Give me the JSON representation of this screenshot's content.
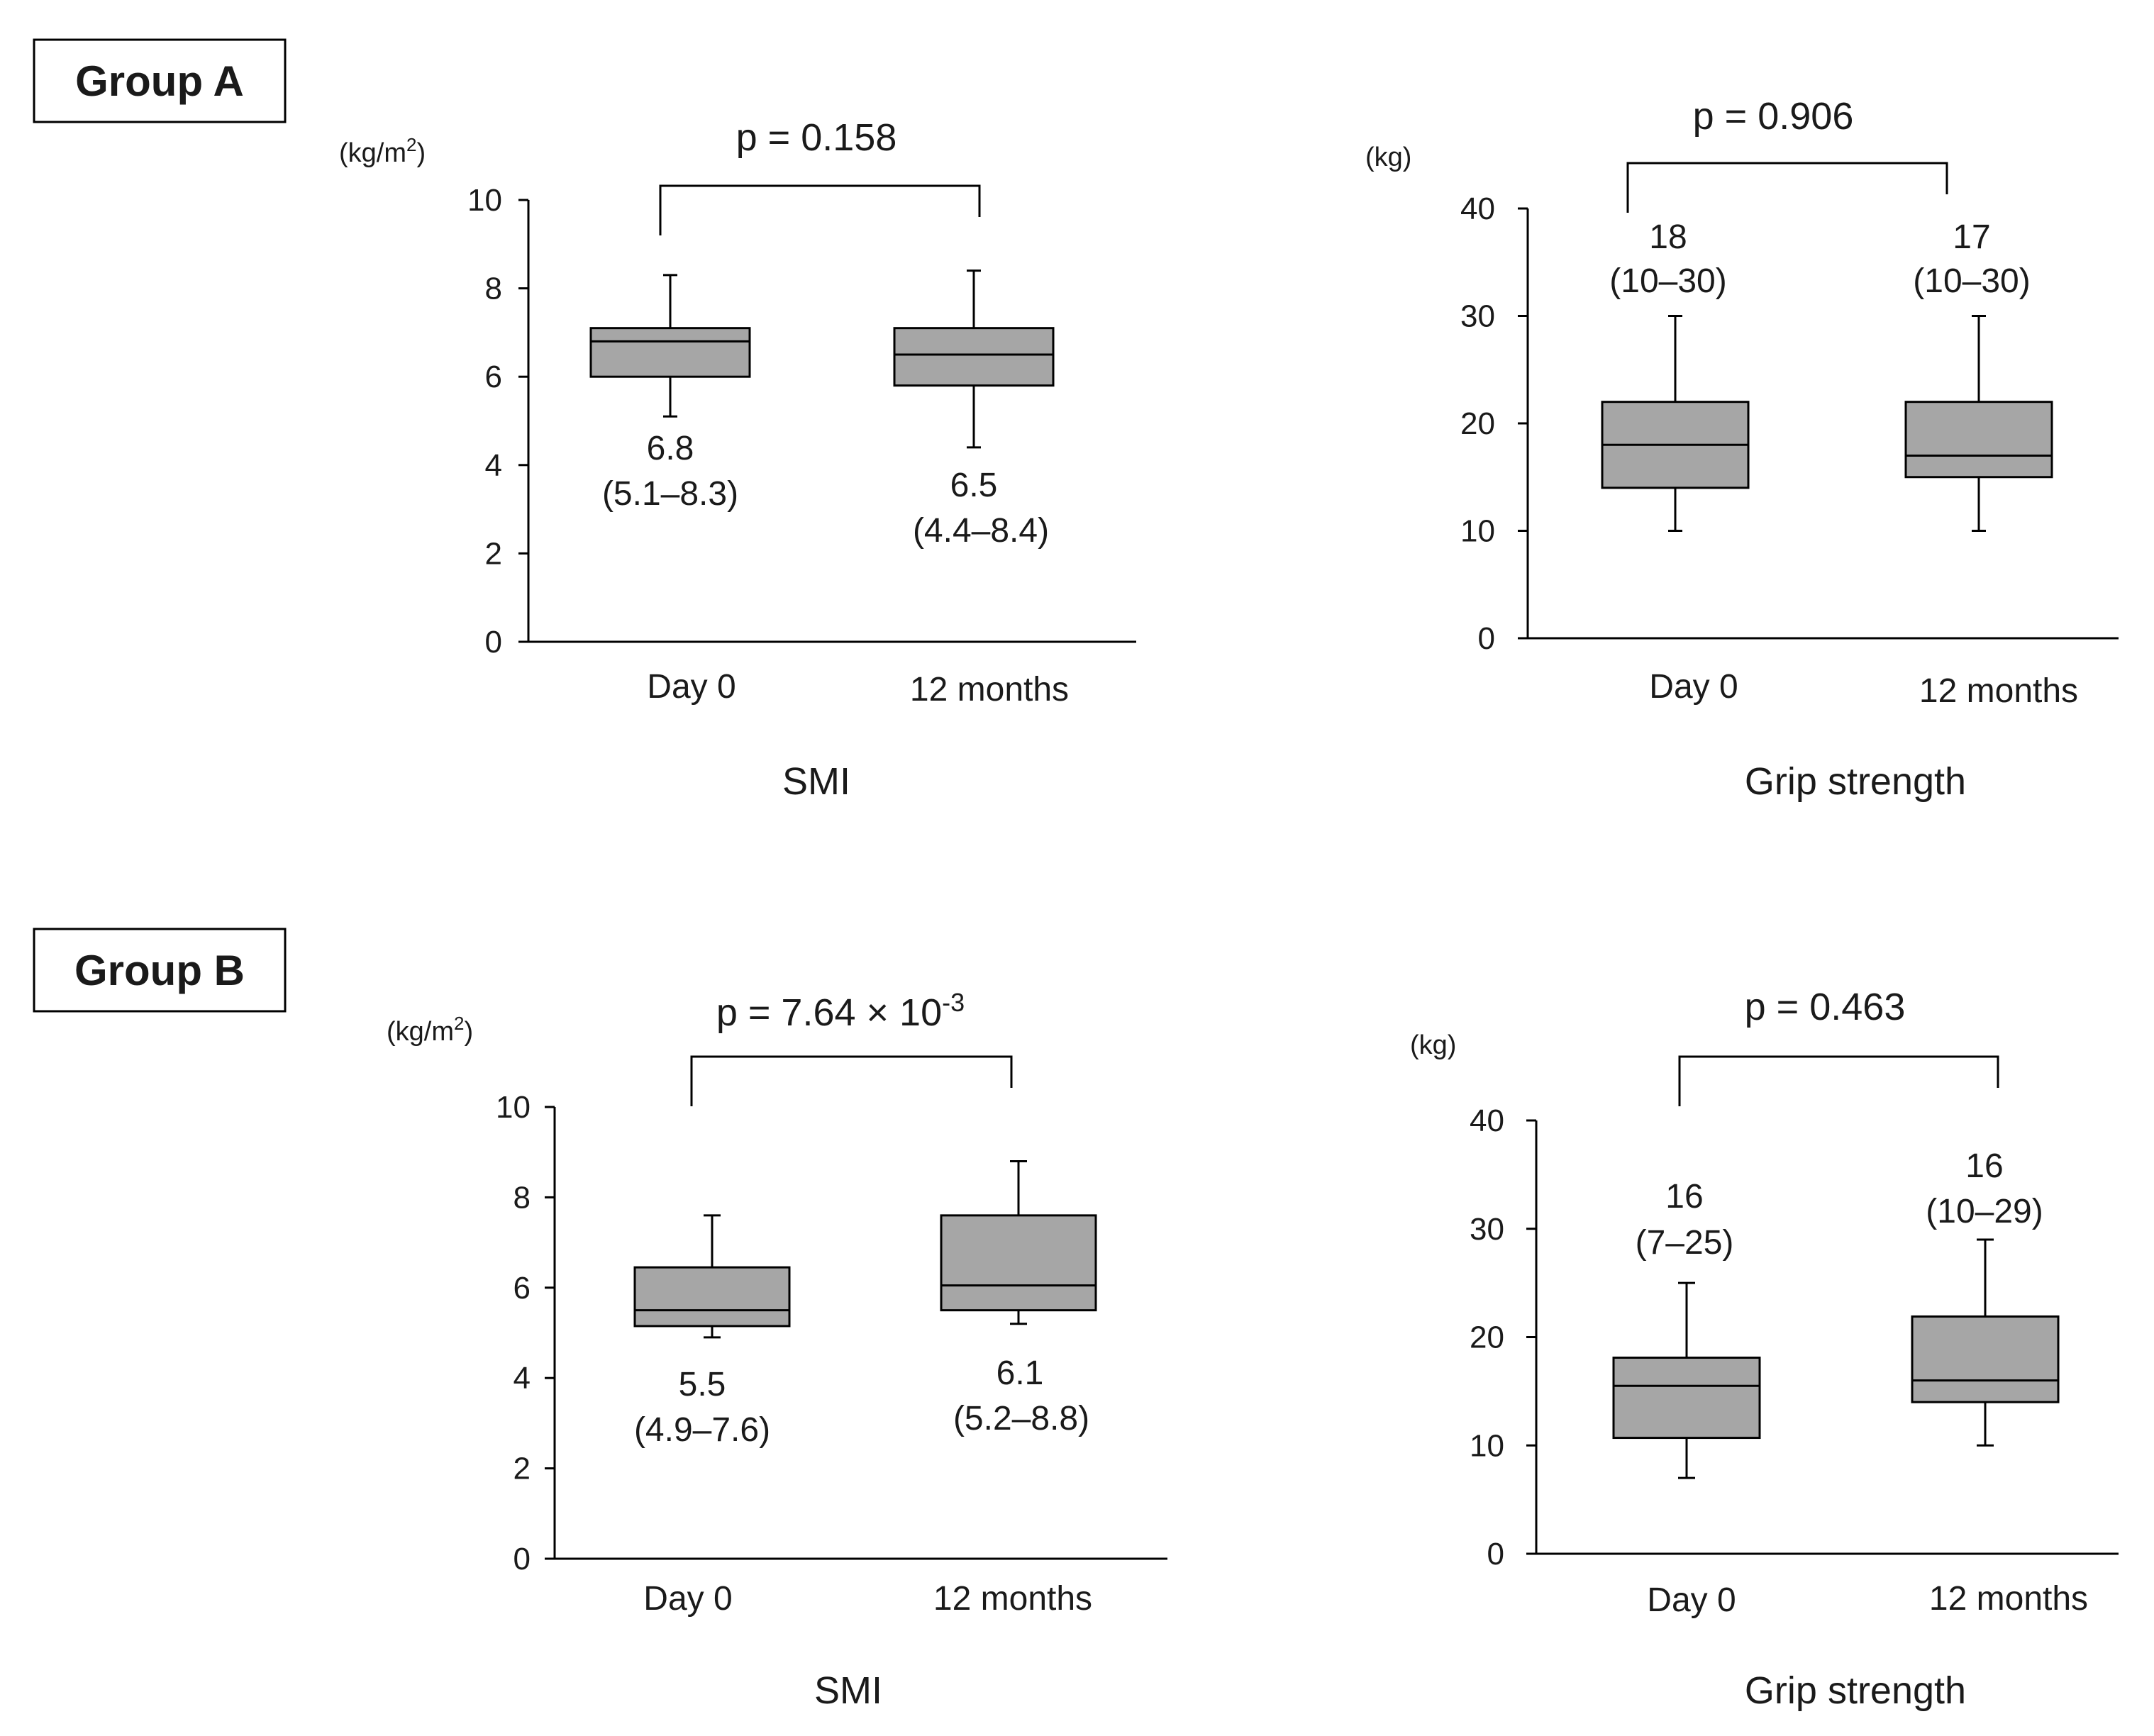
{
  "groups": [
    {
      "label": "Group A"
    },
    {
      "label": "Group B"
    }
  ],
  "chart_data": [
    {
      "id": "a-smi",
      "type": "box",
      "group": "Group A",
      "xlabel": "SMI",
      "unit": "(kg/m2)",
      "unit_base": "(kg/m",
      "unit_sup": "2",
      "unit_close": ")",
      "ylim": [
        0,
        10
      ],
      "yticks": [
        0,
        2,
        4,
        6,
        8,
        10
      ],
      "categories": [
        "Day 0",
        "12 months"
      ],
      "boxes": [
        {
          "min": 5.1,
          "q1": 6.0,
          "median": 6.8,
          "q3": 7.1,
          "max": 8.3,
          "label_value": "6.8",
          "label_range": "(5.1–8.3)"
        },
        {
          "min": 4.4,
          "q1": 5.8,
          "median": 6.5,
          "q3": 7.1,
          "max": 8.4,
          "label_value": "6.5",
          "label_range": "(4.4–8.4)"
        }
      ],
      "annotation_position": "below",
      "pvalue_text": "p = 0.158"
    },
    {
      "id": "a-grip",
      "type": "box",
      "group": "Group A",
      "xlabel": "Grip  strength",
      "unit": "(kg)",
      "ylim": [
        0,
        40
      ],
      "yticks": [
        0,
        10,
        20,
        30,
        40
      ],
      "categories": [
        "Day 0",
        "12 months"
      ],
      "boxes": [
        {
          "min": 10,
          "q1": 14,
          "median": 18,
          "q3": 22,
          "max": 30,
          "label_value": "18",
          "label_range": "(10–30)"
        },
        {
          "min": 10,
          "q1": 15,
          "median": 17,
          "q3": 22,
          "max": 30,
          "label_value": "17",
          "label_range": "(10–30)"
        }
      ],
      "annotation_position": "above",
      "pvalue_text": "p = 0.906"
    },
    {
      "id": "b-smi",
      "type": "box",
      "group": "Group B",
      "xlabel": "SMI",
      "unit": "(kg/m2)",
      "unit_base": "(kg/m",
      "unit_sup": "2",
      "unit_close": ")",
      "ylim": [
        0,
        10
      ],
      "yticks": [
        0,
        2,
        4,
        6,
        8,
        10
      ],
      "categories": [
        "Day 0",
        "12 months"
      ],
      "boxes": [
        {
          "min": 4.9,
          "q1": 5.15,
          "median": 5.5,
          "q3": 6.45,
          "max": 7.6,
          "label_value": "5.5",
          "label_range": "(4.9–7.6)"
        },
        {
          "min": 5.2,
          "q1": 5.5,
          "median": 6.05,
          "q3": 7.6,
          "max": 8.8,
          "label_value": "6.1",
          "label_range": "(5.2–8.8)"
        }
      ],
      "annotation_position": "below",
      "pvalue_text": "p = 7.64 × 10-3",
      "pvalue_base": "p = 7.64 × 10",
      "pvalue_sup": "-3"
    },
    {
      "id": "b-grip",
      "type": "box",
      "group": "Group B",
      "xlabel": "Grip  strength",
      "unit": "(kg)",
      "ylim": [
        0,
        40
      ],
      "yticks": [
        0,
        10,
        20,
        30,
        40
      ],
      "categories": [
        "Day 0",
        "12 months"
      ],
      "boxes": [
        {
          "min": 7,
          "q1": 10.7,
          "median": 15.5,
          "q3": 18.1,
          "max": 25,
          "label_value": "16",
          "label_range": "(7–25)"
        },
        {
          "min": 10,
          "q1": 14,
          "median": 16,
          "q3": 21.9,
          "max": 29,
          "label_value": "16",
          "label_range": "(10–29)"
        }
      ],
      "annotation_position": "above",
      "pvalue_text": "p = 0.463"
    }
  ]
}
